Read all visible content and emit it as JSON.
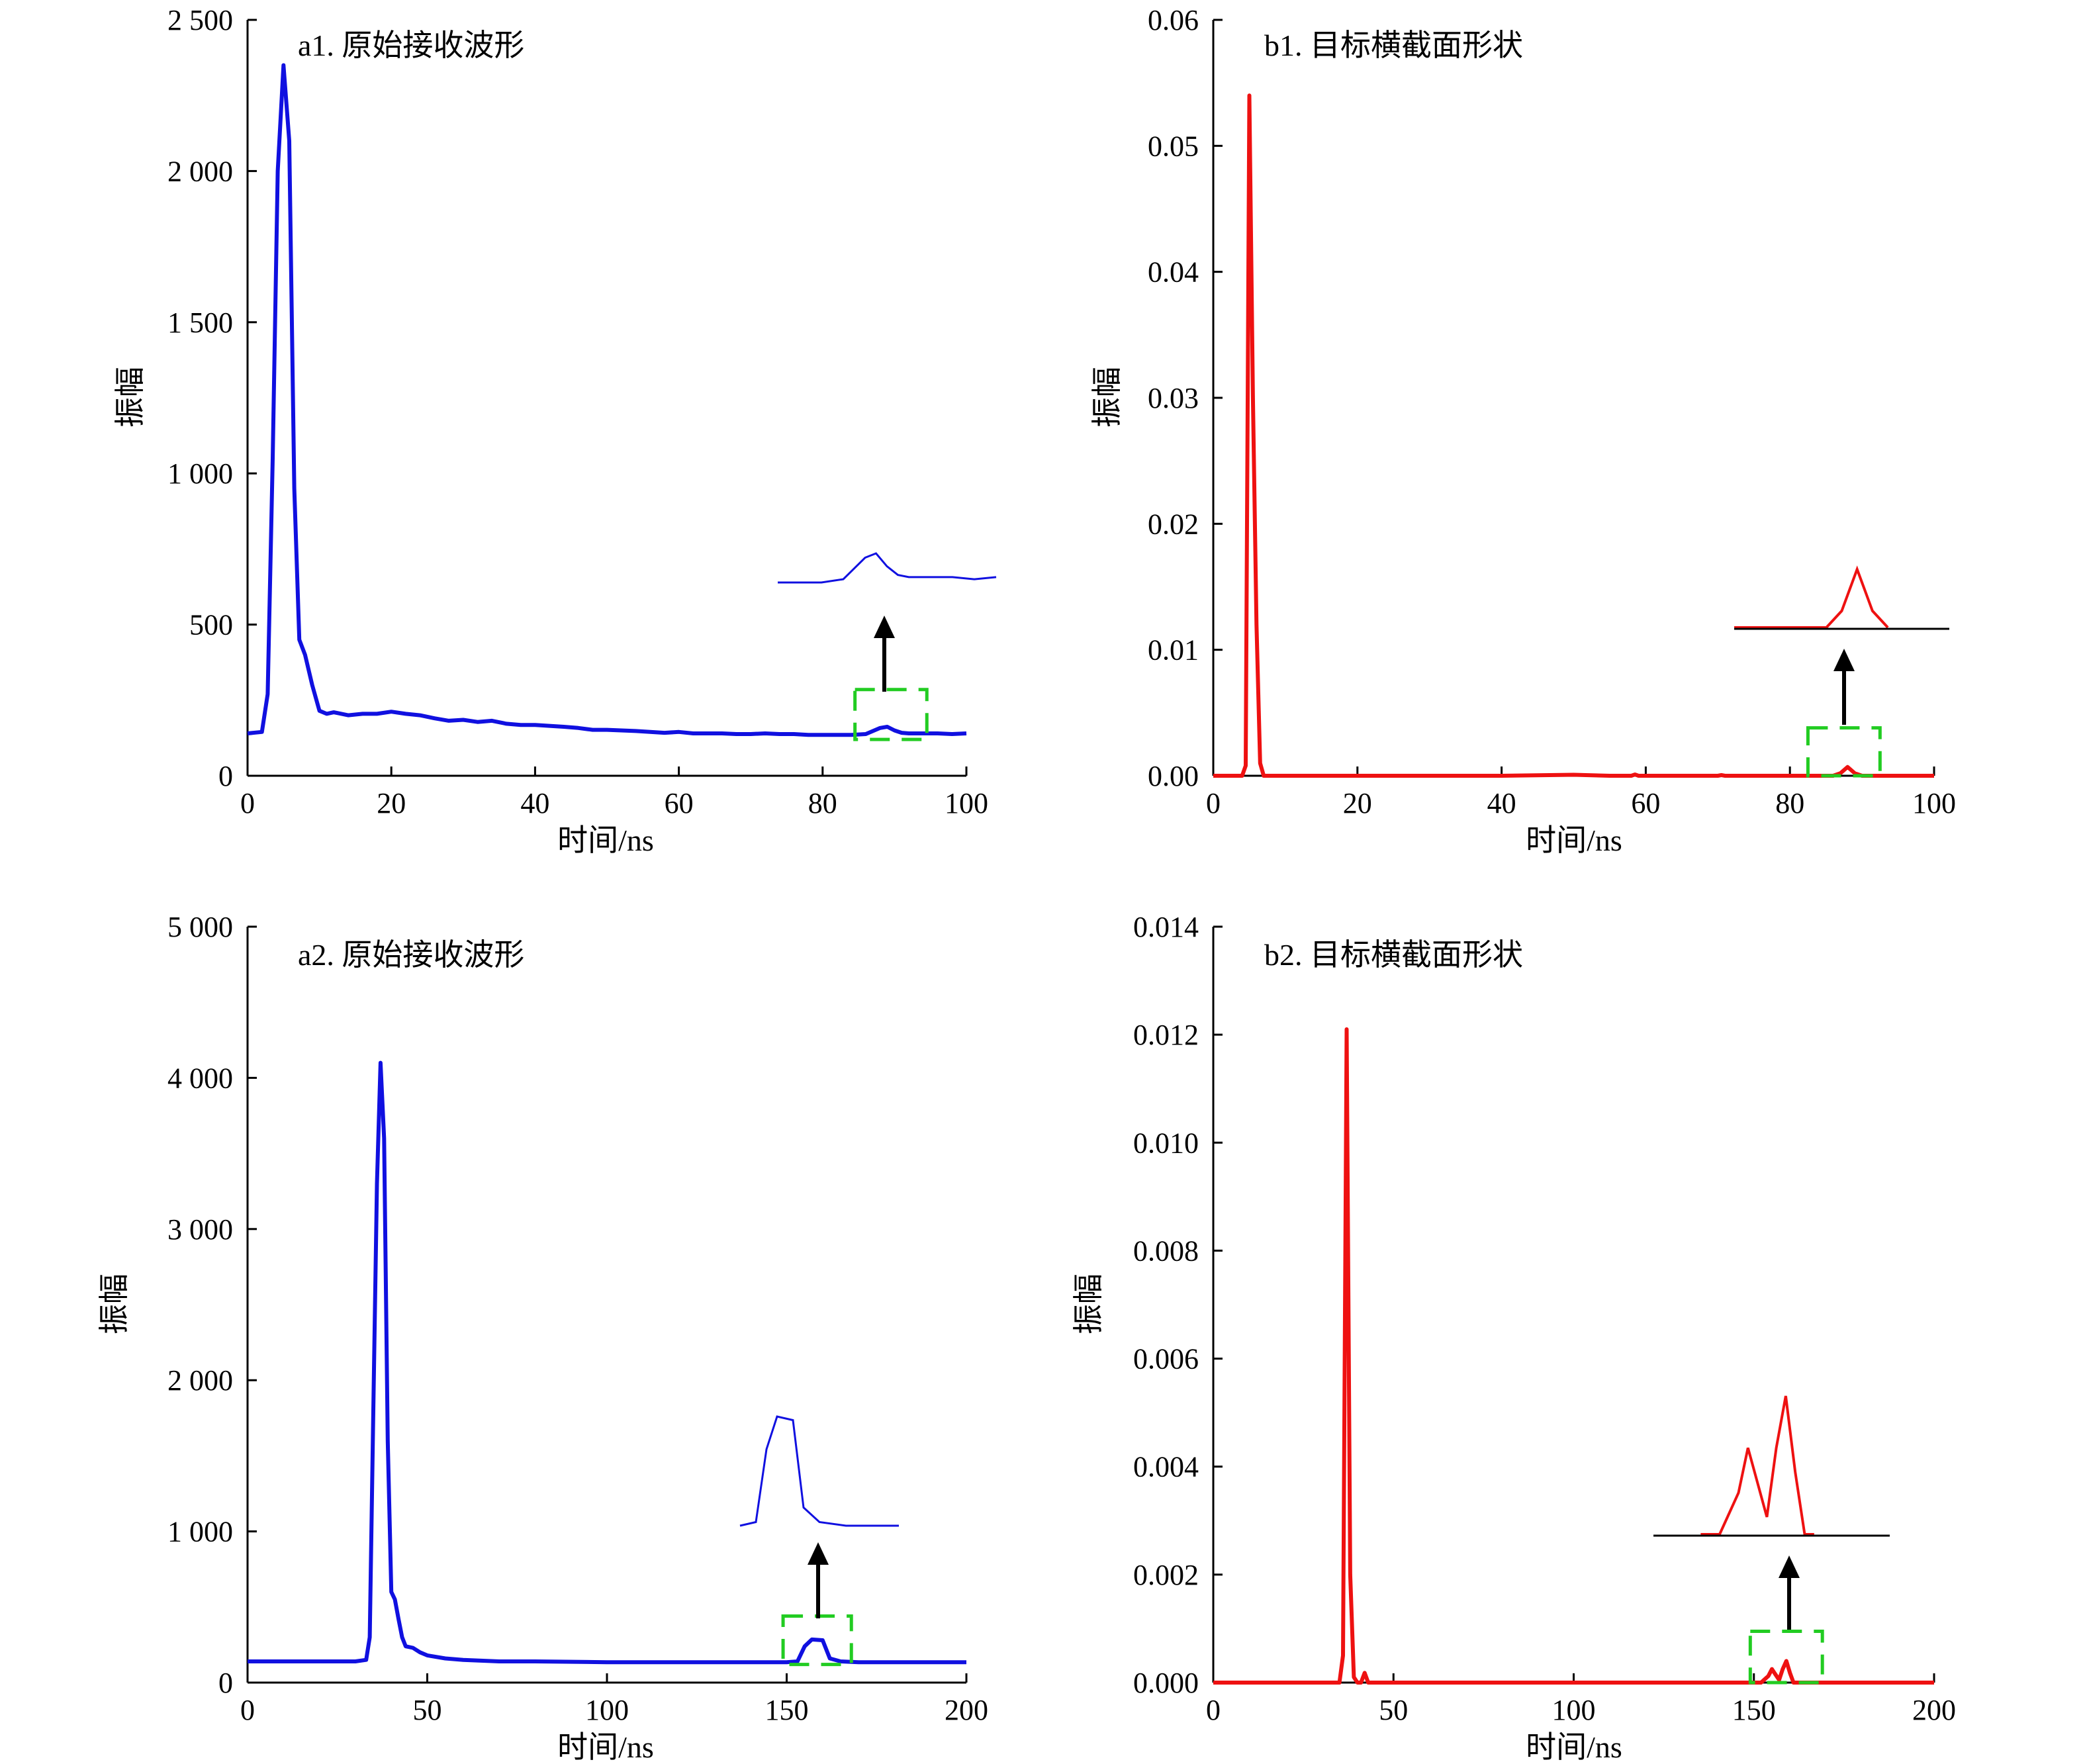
{
  "chart_data": [
    {
      "id": "a1",
      "type": "line",
      "title": "a1. 原始接收波形",
      "xlabel": "时间/ns",
      "ylabel": "振幅",
      "xlim": [
        0,
        100
      ],
      "ylim": [
        0,
        2500
      ],
      "xticks": [
        0,
        20,
        40,
        60,
        80,
        100
      ],
      "xtick_labels": [
        "0",
        "20",
        "40",
        "60",
        "80",
        "100"
      ],
      "yticks": [
        0,
        500,
        1000,
        1500,
        2000,
        2500
      ],
      "ytick_labels": [
        "0",
        "500",
        "1 000",
        "1 500",
        "2 000",
        "2 500"
      ],
      "color": "#1010e0",
      "highlight_color": "#22cc22",
      "highlight_x": [
        84.5,
        94.5
      ],
      "highlight_y": [
        120,
        285
      ],
      "series": [
        {
          "x": [
            0,
            2,
            2.8,
            3.5,
            4.2,
            5,
            5.8,
            6.5,
            7.2,
            8,
            9,
            10,
            11,
            12,
            14,
            16,
            18,
            20,
            22,
            24,
            26,
            28,
            30,
            32,
            34,
            36,
            38,
            40,
            42,
            44,
            46,
            48,
            50,
            52,
            54,
            56,
            58,
            60,
            62,
            64,
            66,
            68,
            70,
            72,
            74,
            76,
            78,
            80,
            82,
            84,
            86,
            88,
            89,
            90,
            91,
            92,
            94,
            96,
            98,
            100
          ],
          "y": [
            140,
            145,
            270,
            1050,
            2000,
            2350,
            2100,
            950,
            450,
            400,
            300,
            215,
            205,
            210,
            200,
            205,
            205,
            212,
            205,
            200,
            190,
            182,
            185,
            178,
            182,
            172,
            168,
            168,
            165,
            162,
            158,
            152,
            152,
            150,
            148,
            145,
            142,
            145,
            140,
            140,
            140,
            138,
            138,
            140,
            138,
            138,
            135,
            135,
            135,
            135,
            138,
            158,
            162,
            150,
            142,
            140,
            140,
            140,
            138,
            140
          ]
        }
      ]
    },
    {
      "id": "b1",
      "type": "line",
      "title": "b1. 目标横截面形状",
      "xlabel": "时间/ns",
      "ylabel": "振幅",
      "xlim": [
        0,
        100
      ],
      "ylim": [
        0,
        0.06
      ],
      "xticks": [
        0,
        20,
        40,
        60,
        80,
        100
      ],
      "xtick_labels": [
        "0",
        "20",
        "40",
        "60",
        "80",
        "100"
      ],
      "yticks": [
        0,
        0.01,
        0.02,
        0.03,
        0.04,
        0.05,
        0.06
      ],
      "ytick_labels": [
        "0.00",
        "0.01",
        "0.02",
        "0.03",
        "0.04",
        "0.05",
        "0.06"
      ],
      "color": "#ee1111",
      "highlight_color": "#22cc22",
      "highlight_x": [
        82.5,
        92.5
      ],
      "highlight_y": [
        0,
        0.0038
      ],
      "series": [
        {
          "x": [
            0,
            4,
            4.5,
            5,
            5.5,
            6,
            6.5,
            7,
            8,
            20,
            40,
            50,
            55,
            58,
            58.5,
            59,
            60,
            70,
            70.5,
            71,
            80,
            86,
            87,
            88,
            89,
            90,
            100
          ],
          "y": [
            0,
            0,
            0.0008,
            0.054,
            0.03,
            0.012,
            0.001,
            0,
            0,
            0,
            0,
            8e-05,
            0,
            0,
            0.0001,
            0,
            0,
            0,
            5e-05,
            0,
            0,
            0,
            0.0002,
            0.0007,
            0.0002,
            0,
            0
          ]
        }
      ]
    },
    {
      "id": "a2",
      "type": "line",
      "title": "a2. 原始接收波形",
      "xlabel": "时间/ns",
      "ylabel": "振幅",
      "xlim": [
        0,
        200
      ],
      "ylim": [
        0,
        5000
      ],
      "xticks": [
        0,
        50,
        100,
        150,
        200
      ],
      "xtick_labels": [
        "0",
        "50",
        "100",
        "150",
        "200"
      ],
      "yticks": [
        0,
        1000,
        2000,
        3000,
        4000,
        5000
      ],
      "ytick_labels": [
        "0",
        "1 000",
        "2 000",
        "3 000",
        "4 000",
        "5 000"
      ],
      "color": "#1010e0",
      "highlight_color": "#22cc22",
      "highlight_x": [
        149,
        168
      ],
      "highlight_y": [
        120,
        440
      ],
      "series": [
        {
          "x": [
            0,
            30,
            33,
            34,
            35,
            36,
            37,
            38,
            39,
            40,
            41,
            42,
            43,
            44,
            46,
            48,
            50,
            55,
            60,
            70,
            80,
            100,
            120,
            140,
            150,
            153,
            155,
            157,
            160,
            162,
            165,
            170,
            180,
            190,
            200
          ],
          "y": [
            140,
            140,
            150,
            300,
            1800,
            3300,
            4100,
            3600,
            1600,
            600,
            550,
            420,
            300,
            240,
            230,
            200,
            180,
            160,
            150,
            140,
            140,
            135,
            135,
            135,
            135,
            140,
            240,
            285,
            280,
            160,
            140,
            135,
            135,
            135,
            135
          ]
        }
      ]
    },
    {
      "id": "b2",
      "type": "line",
      "title": "b2. 目标横截面形状",
      "xlabel": "时间/ns",
      "ylabel": "振幅",
      "xlim": [
        0,
        200
      ],
      "ylim": [
        0,
        0.014
      ],
      "xticks": [
        0,
        50,
        100,
        150,
        200
      ],
      "xtick_labels": [
        "0",
        "50",
        "100",
        "150",
        "200"
      ],
      "yticks": [
        0,
        0.002,
        0.004,
        0.006,
        0.008,
        0.01,
        0.012,
        0.014
      ],
      "ytick_labels": [
        "0.000",
        "0.002",
        "0.004",
        "0.006",
        "0.008",
        "0.010",
        "0.012",
        "0.014"
      ],
      "color": "#ee1111",
      "highlight_color": "#22cc22",
      "highlight_x": [
        149,
        169
      ],
      "highlight_y": [
        0,
        0.00095
      ],
      "series": [
        {
          "x": [
            0,
            35,
            36,
            37,
            38,
            39,
            40,
            41,
            42,
            43,
            44,
            100,
            150,
            152,
            154,
            155,
            156,
            157,
            158,
            159,
            160,
            161,
            162,
            200
          ],
          "y": [
            0,
            0,
            0.0005,
            0.0121,
            0.002,
            0.0001,
            0,
            0,
            0.00018,
            0,
            0,
            0,
            0,
            0,
            0.00012,
            0.00025,
            0.00015,
            5e-05,
            0.00025,
            0.0004,
            0.00018,
            0,
            0,
            0
          ]
        }
      ]
    }
  ]
}
